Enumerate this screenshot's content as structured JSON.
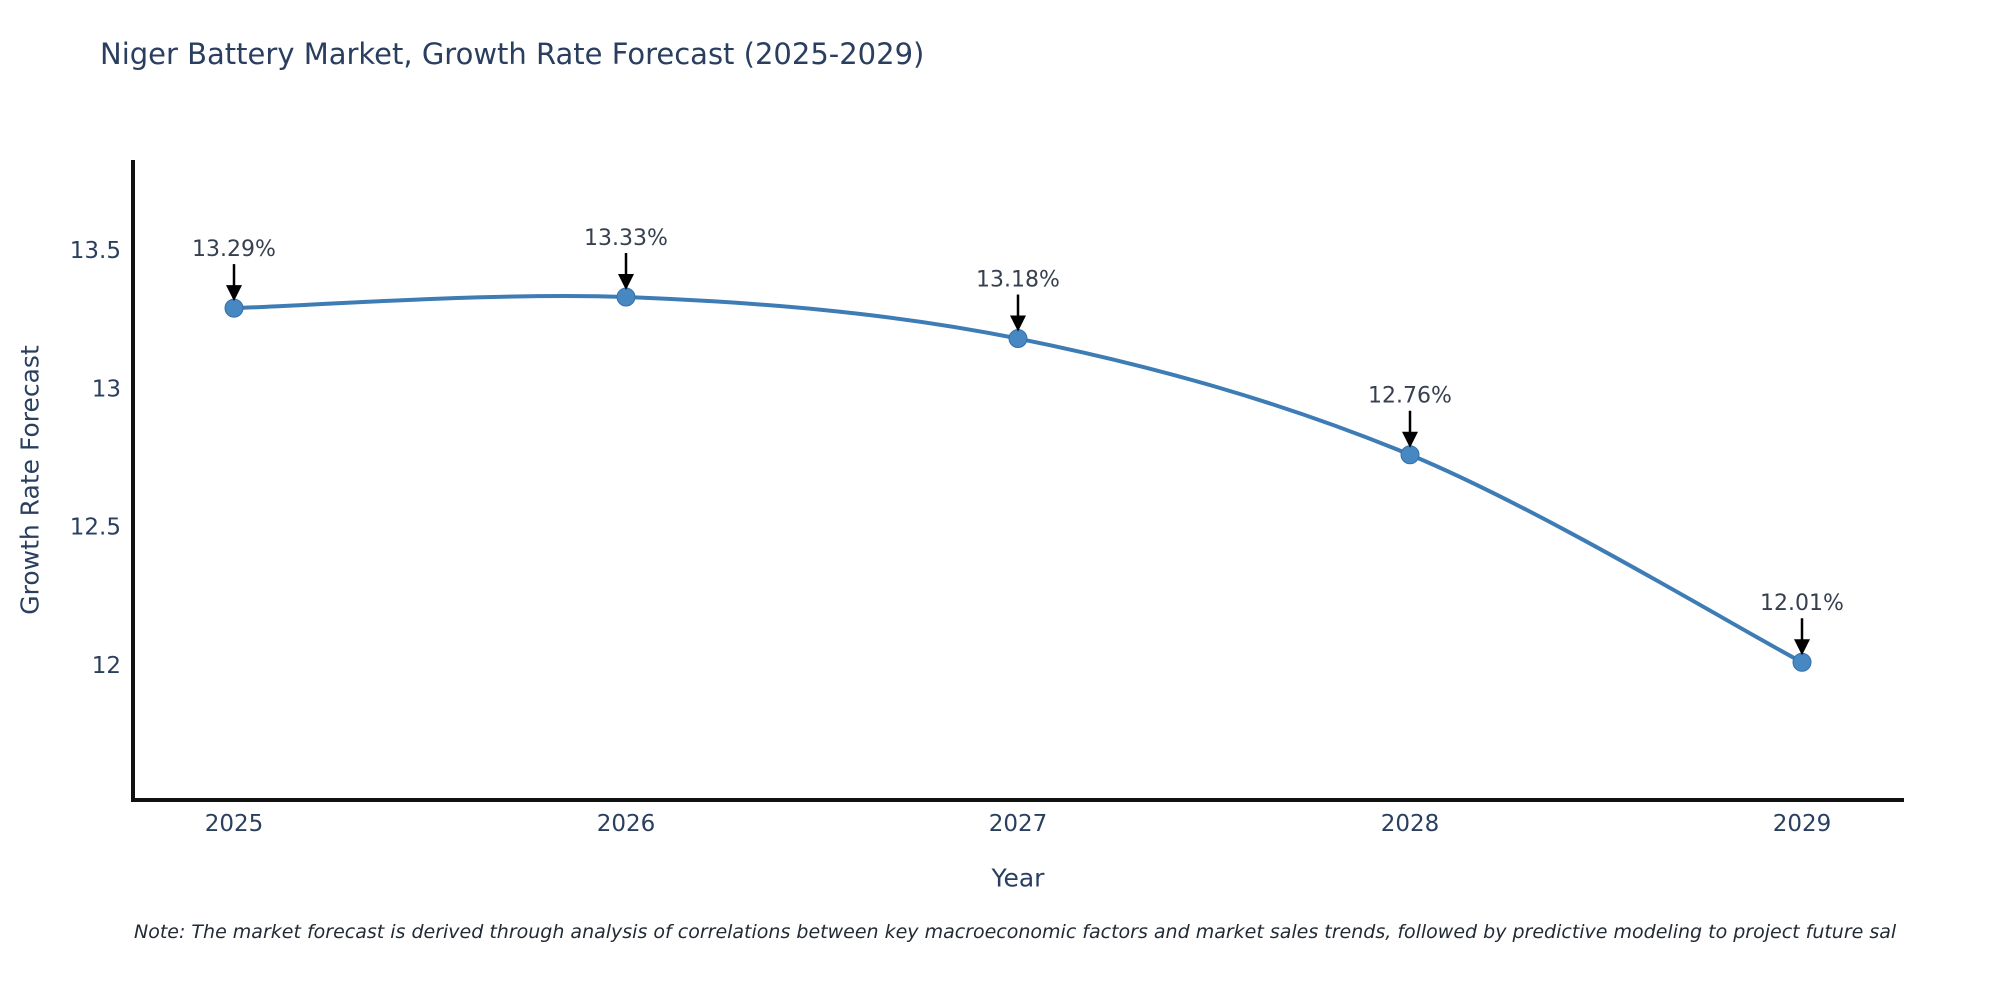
{
  "title": "Niger Battery Market, Growth Rate Forecast (2025-2029)",
  "note": "Note: The market forecast is derived through analysis of correlations between key macroeconomic factors and market sales trends, followed by predictive modeling to project future sal",
  "chart_data": {
    "type": "line",
    "title": "Niger Battery Market, Growth Rate Forecast (2025-2029)",
    "xlabel": "Year",
    "ylabel": "Growth Rate Forecast",
    "x": [
      2025,
      2026,
      2027,
      2028,
      2029
    ],
    "series": [
      {
        "name": "Growth Rate Forecast",
        "values": [
          13.29,
          13.33,
          13.18,
          12.76,
          12.01
        ],
        "point_labels": [
          "13.29%",
          "13.33%",
          "13.18%",
          "12.76%",
          "12.01%"
        ]
      }
    ],
    "xtick_labels": [
      "2025",
      "2026",
      "2027",
      "2028",
      "2029"
    ],
    "ytick_values": [
      13.5,
      13.0,
      12.5,
      12.0
    ],
    "ytick_labels": [
      "13.5",
      "13",
      "12.5",
      "12"
    ],
    "ylim": [
      11.32,
      13.83
    ],
    "grid": false,
    "legend_position": "none",
    "line_shape": "spline",
    "colors": {
      "line": "#3d7cb5",
      "marker": "#4787c2",
      "marker_edge": "#3470a8",
      "axis": "#111111",
      "text": "#2a3f5f",
      "annotation_arrow": "#000000",
      "background": "#ffffff"
    }
  }
}
